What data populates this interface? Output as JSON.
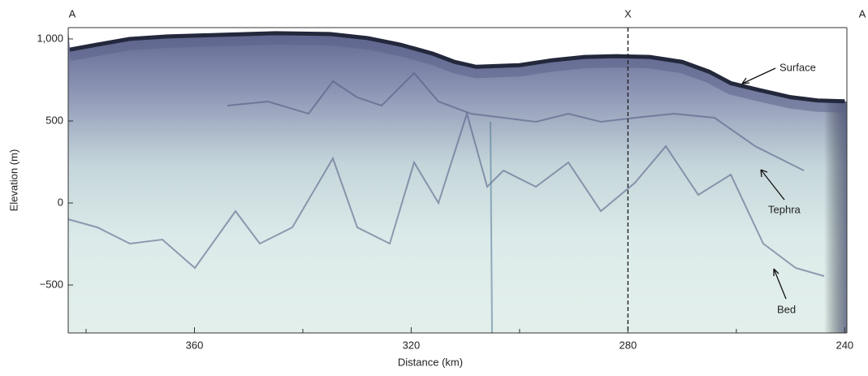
{
  "chart_data": {
    "type": "echogram",
    "xlabel": "Distance (km)",
    "ylabel": "Elevation (m)",
    "xlim": [
      383.3,
      239.6
    ],
    "xticks": [
      360,
      320,
      280,
      240
    ],
    "xminorticks": [
      380,
      340,
      300,
      260
    ],
    "ylim": [
      -792,
      1069
    ],
    "yticks": [
      {
        "value": 1000,
        "label": "1,000"
      },
      500,
      0,
      {
        "value": -500,
        "label": "−500"
      }
    ],
    "profile_labels": {
      "start": "A",
      "end": "A"
    },
    "marker": {
      "label": "X",
      "x": 280
    },
    "surface": {
      "color": "#23283c",
      "x": [
        383,
        378,
        372,
        365,
        355,
        345,
        335,
        328,
        322,
        316,
        312,
        308,
        300,
        294,
        288,
        282,
        276,
        270,
        265,
        261,
        256,
        250,
        245,
        240
      ],
      "values": [
        935,
        965,
        1000,
        1015,
        1025,
        1035,
        1030,
        1005,
        965,
        910,
        860,
        830,
        840,
        870,
        890,
        895,
        890,
        860,
        800,
        730,
        690,
        645,
        625,
        620
      ]
    },
    "annotations": {
      "surface": "Surface",
      "tephra": "Tephra",
      "bed": "Bed"
    }
  }
}
